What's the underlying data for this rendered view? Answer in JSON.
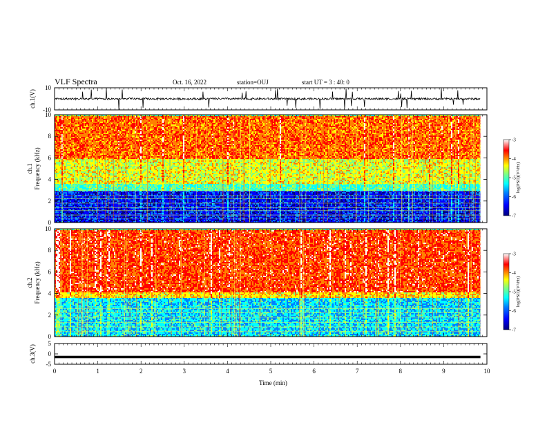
{
  "header": {
    "title": "VLF Spectra",
    "date": "Oct. 16, 2022",
    "station": "station=OUJ",
    "start_ut": "start  UT =  3 : 40: 0"
  },
  "colors": {
    "colormap": [
      "#00007f",
      "#0000ff",
      "#0080ff",
      "#00ffff",
      "#80ff80",
      "#ffff00",
      "#ff8000",
      "#ff0000",
      "#ffffff"
    ]
  },
  "chart_data": [
    {
      "type": "line",
      "panel": "ch1-waveform",
      "ylabel": "ch.1(V)",
      "ylim": [
        -10,
        10
      ],
      "yticks": [
        "10",
        "-10"
      ],
      "xlim": [
        0,
        10
      ],
      "baseline_value": 0,
      "description_of_trace": "noisy waveform near 0 V with impulsive spikes"
    },
    {
      "type": "heatmap",
      "panel": "ch1-spectrogram",
      "ylabel": "ch.1\nFrequency (kHz)",
      "ylim": [
        0,
        10
      ],
      "yticks": [
        "0",
        "2",
        "4",
        "6",
        "8",
        "10"
      ],
      "xlim": [
        0,
        9.85
      ],
      "colorbar": {
        "label": "log(PSD)(V²/Hz)",
        "range": [
          -7,
          -3
        ],
        "ticks": [
          "-3",
          "-4",
          "-5",
          "-6",
          "-7"
        ]
      },
      "bands_khz_logpsd": [
        {
          "from": 0,
          "to": 3,
          "log_psd": -6.5
        },
        {
          "from": 3,
          "to": 3.6,
          "log_psd": -5.2
        },
        {
          "from": 3.6,
          "to": 6,
          "log_psd": -4.6
        },
        {
          "from": 6,
          "to": 10,
          "log_psd": -3.9
        }
      ]
    },
    {
      "type": "heatmap",
      "panel": "ch2-spectrogram",
      "ylabel": "ch.2\nFrequency (kHz)",
      "ylim": [
        0,
        10
      ],
      "yticks": [
        "0",
        "2",
        "4",
        "6",
        "8",
        "10"
      ],
      "xlim": [
        0,
        9.85
      ],
      "colorbar": {
        "label": "log(PSD)(V²/Hz)",
        "range": [
          -7,
          -3
        ],
        "ticks": [
          "-3",
          "-4",
          "-5",
          "-6",
          "-7"
        ]
      },
      "bands_khz_logpsd": [
        {
          "from": 0,
          "to": 3.6,
          "log_psd": -5.6
        },
        {
          "from": 3.6,
          "to": 4.2,
          "log_psd": -4.4
        },
        {
          "from": 4.2,
          "to": 10,
          "log_psd": -3.7
        }
      ]
    },
    {
      "type": "line",
      "panel": "ch3-waveform",
      "ylabel": "ch.3(V)",
      "ylim": [
        -5,
        5
      ],
      "yticks": [
        "5",
        "0",
        "-5"
      ],
      "xlim": [
        0,
        10
      ],
      "baseline_value": -1.5
    }
  ],
  "xaxis": {
    "label": "Time (min)",
    "ticks": [
      "0",
      "1",
      "2",
      "3",
      "4",
      "5",
      "6",
      "7",
      "8",
      "9",
      "10"
    ]
  }
}
